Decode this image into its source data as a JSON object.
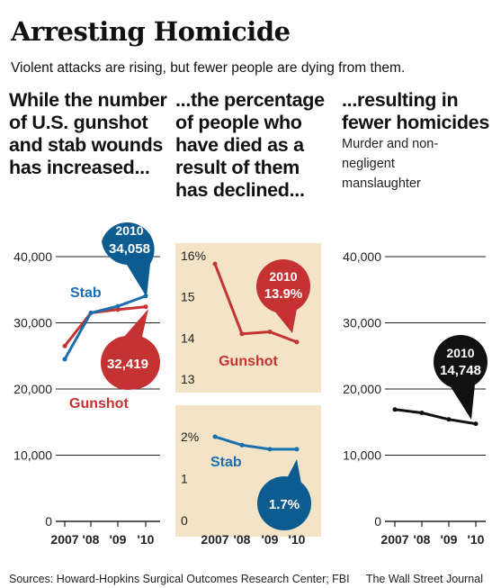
{
  "title": "Arresting Homicide",
  "subtitle": "Violent attacks are rising, but fewer people are dying from them.",
  "columns": {
    "left": {
      "heading": "While the number of U.S. gunshot and stab wounds has increased..."
    },
    "middle": {
      "heading": "...the percentage of people who have died as a result of them has declined..."
    },
    "right": {
      "heading": "...resulting in fewer homicides",
      "note": "Murder and non-negligent manslaughter"
    }
  },
  "footer": {
    "sources": "Sources: Howard-Hopkins Surgical Outcomes Research Center; FBI",
    "credit": "The Wall Street Journal"
  },
  "colors": {
    "stab": "#1a6fae",
    "gunshot": "#c43232",
    "homicide": "#111111",
    "panel_bg": "#f3e4c7",
    "bubble_stab": "#0d5c91"
  },
  "chart_data": [
    {
      "type": "line",
      "x": [
        "2007",
        "'08",
        "'09",
        "'10"
      ],
      "ylim": [
        0,
        40000
      ],
      "yticks": [
        "0",
        "10,000",
        "20,000",
        "30,000",
        "40,000"
      ],
      "series": [
        {
          "name": "Stab",
          "values": [
            24500,
            31500,
            32500,
            34058
          ]
        },
        {
          "name": "Gunshot",
          "values": [
            26500,
            31500,
            32000,
            32419
          ]
        }
      ],
      "annotations": {
        "stab_year": "2010",
        "stab_value": "34,058",
        "gunshot_value": "32,419"
      }
    },
    {
      "type": "line",
      "x": [
        "2007",
        "'08",
        "'09",
        "'10"
      ],
      "ylim": [
        13,
        16
      ],
      "yticks": [
        "13",
        "14",
        "15",
        "16%"
      ],
      "series": [
        {
          "name": "Gunshot",
          "values": [
            15.8,
            14.1,
            14.15,
            13.9
          ]
        }
      ],
      "annotations": {
        "year": "2010",
        "value": "13.9%"
      }
    },
    {
      "type": "line",
      "x": [
        "2007",
        "'08",
        "'09",
        "'10"
      ],
      "ylim": [
        0,
        2
      ],
      "yticks": [
        "0",
        "1",
        "2%"
      ],
      "series": [
        {
          "name": "Stab",
          "values": [
            2.0,
            1.8,
            1.7,
            1.7
          ]
        }
      ],
      "annotations": {
        "value": "1.7%"
      }
    },
    {
      "type": "line",
      "x": [
        "2007",
        "'08",
        "'09",
        "'10"
      ],
      "ylim": [
        0,
        40000
      ],
      "yticks": [
        "0",
        "10,000",
        "20,000",
        "30,000",
        "40,000"
      ],
      "series": [
        {
          "name": "Homicides",
          "values": [
            16900,
            16400,
            15400,
            14748
          ]
        }
      ],
      "annotations": {
        "year": "2010",
        "value": "14,748"
      }
    }
  ]
}
